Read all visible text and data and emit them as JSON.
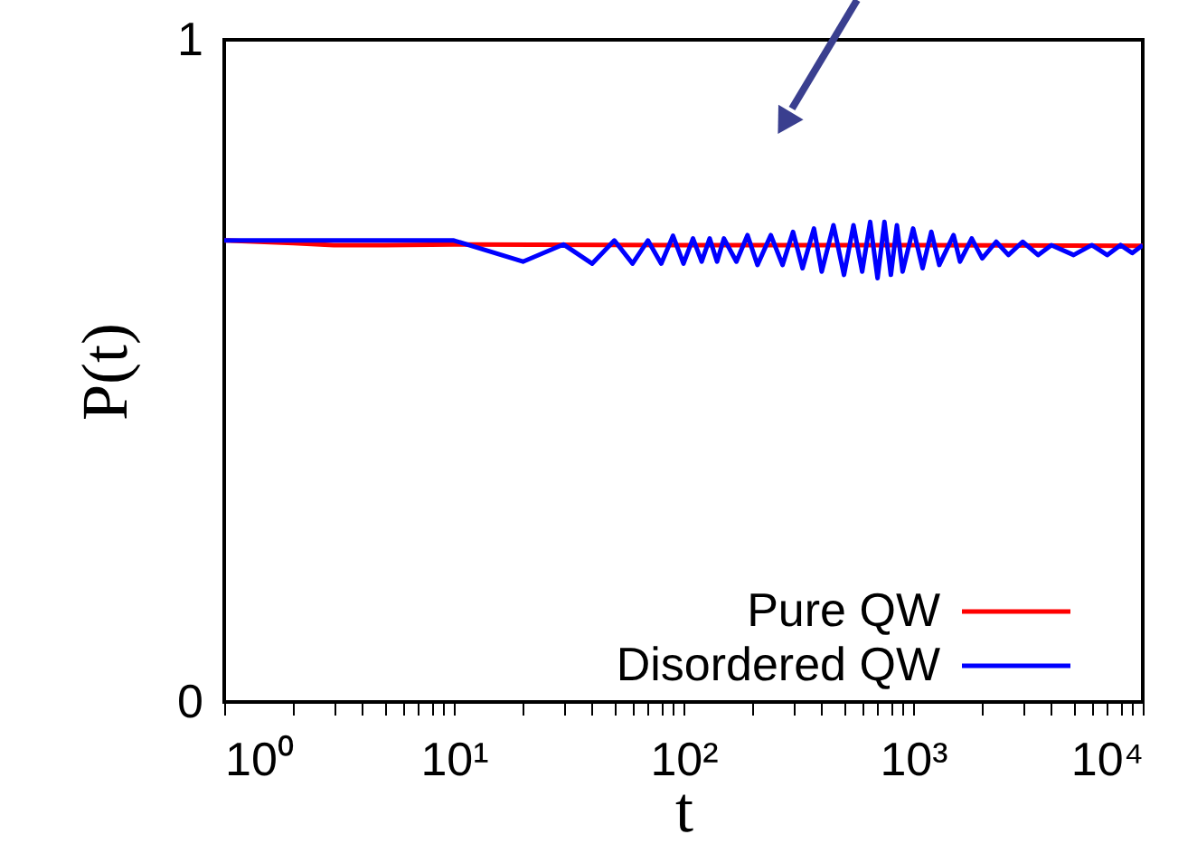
{
  "chart_data": {
    "type": "line",
    "xlabel": "t",
    "ylabel": "P(t)",
    "log": "x",
    "xlim": [
      1,
      10000
    ],
    "ylim": [
      0,
      1
    ],
    "xticks": [
      {
        "value": 1,
        "label": "10⁰"
      },
      {
        "value": 2,
        "label": null
      },
      {
        "value": 3,
        "label": null
      },
      {
        "value": 4,
        "label": null
      },
      {
        "value": 5,
        "label": null
      },
      {
        "value": 6,
        "label": null
      },
      {
        "value": 7,
        "label": null
      },
      {
        "value": 8,
        "label": null
      },
      {
        "value": 9,
        "label": null
      },
      {
        "value": 10,
        "label": "10¹"
      },
      {
        "value": 20,
        "label": null
      },
      {
        "value": 30,
        "label": null
      },
      {
        "value": 40,
        "label": null
      },
      {
        "value": 50,
        "label": null
      },
      {
        "value": 60,
        "label": null
      },
      {
        "value": 70,
        "label": null
      },
      {
        "value": 80,
        "label": null
      },
      {
        "value": 90,
        "label": null
      },
      {
        "value": 100,
        "label": "10²"
      },
      {
        "value": 200,
        "label": null
      },
      {
        "value": 300,
        "label": null
      },
      {
        "value": 400,
        "label": null
      },
      {
        "value": 500,
        "label": null
      },
      {
        "value": 600,
        "label": null
      },
      {
        "value": 700,
        "label": null
      },
      {
        "value": 800,
        "label": null
      },
      {
        "value": 900,
        "label": null
      },
      {
        "value": 1000,
        "label": "10³"
      },
      {
        "value": 2000,
        "label": null
      },
      {
        "value": 3000,
        "label": null
      },
      {
        "value": 4000,
        "label": null
      },
      {
        "value": 5000,
        "label": null
      },
      {
        "value": 6000,
        "label": null
      },
      {
        "value": 7000,
        "label": null
      },
      {
        "value": 8000,
        "label": null
      },
      {
        "value": 9000,
        "label": null
      },
      {
        "value": 10000,
        "label": "10⁴"
      }
    ],
    "yticks": [
      0,
      1
    ],
    "grid": false,
    "legend": "bottom right",
    "marker": "none",
    "line_style": "solid",
    "series": [
      {
        "name": "Pure QW",
        "color": "#ff0000",
        "x": [
          1,
          2,
          3,
          5,
          10,
          100,
          1000,
          10000
        ],
        "values": [
          0.697,
          0.693,
          0.69,
          0.69,
          0.691,
          0.69,
          0.69,
          0.689
        ]
      },
      {
        "name": "Disordered QW",
        "color": "#0000ff",
        "x": [
          1,
          10,
          20,
          30,
          40,
          50,
          60,
          70,
          80,
          90,
          100,
          110,
          120,
          130,
          140,
          150,
          170,
          190,
          210,
          240,
          270,
          300,
          330,
          370,
          400,
          450,
          500,
          550,
          600,
          650,
          700,
          750,
          800,
          850,
          900,
          1000,
          1100,
          1200,
          1300,
          1500,
          1600,
          1800,
          2000,
          2300,
          2600,
          3000,
          3500,
          4000,
          5000,
          6000,
          7000,
          8000,
          9000,
          10000
        ],
        "values": [
          0.697,
          0.697,
          0.665,
          0.691,
          0.662,
          0.697,
          0.662,
          0.697,
          0.662,
          0.704,
          0.662,
          0.7,
          0.665,
          0.7,
          0.665,
          0.7,
          0.665,
          0.705,
          0.66,
          0.705,
          0.66,
          0.71,
          0.655,
          0.715,
          0.65,
          0.72,
          0.645,
          0.72,
          0.65,
          0.725,
          0.64,
          0.725,
          0.645,
          0.72,
          0.65,
          0.715,
          0.655,
          0.71,
          0.66,
          0.705,
          0.665,
          0.7,
          0.67,
          0.695,
          0.675,
          0.695,
          0.675,
          0.69,
          0.675,
          0.69,
          0.675,
          0.69,
          0.678,
          0.69
        ]
      }
    ]
  }
}
